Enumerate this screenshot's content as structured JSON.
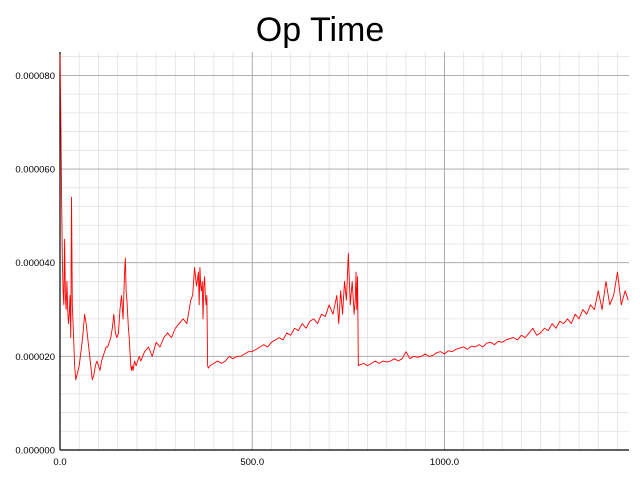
{
  "chart_data": {
    "type": "line",
    "title": "Op Time",
    "xlabel": "",
    "ylabel": "",
    "xlim": [
      0,
      1480
    ],
    "ylim": [
      0,
      8.5e-05
    ],
    "x_ticks": [
      {
        "value": 0,
        "label": "0.0"
      },
      {
        "value": 500,
        "label": "500.0"
      },
      {
        "value": 1000,
        "label": "1000.0"
      }
    ],
    "y_ticks": [
      {
        "value": 0,
        "label": "0.000000"
      },
      {
        "value": 2e-05,
        "label": "0.000020"
      },
      {
        "value": 4e-05,
        "label": "0.000040"
      },
      {
        "value": 6e-05,
        "label": "0.000060"
      },
      {
        "value": 8e-05,
        "label": "0.000080"
      }
    ],
    "x_minor_step": 50,
    "y_minor_step": 4e-06,
    "grid": true,
    "legend": "none",
    "colors": {
      "line": "#ff0000",
      "grid_major": "#a6a6a6",
      "grid_minor": "#e2e2e2",
      "axis": "#000000"
    },
    "series": [
      {
        "x": [
          0,
          2,
          4,
          6,
          8,
          10,
          12,
          14,
          16,
          18,
          20,
          22,
          24,
          26,
          28,
          30,
          32,
          35,
          38,
          41,
          44,
          47,
          50,
          53,
          56,
          60,
          64,
          68,
          72,
          76,
          80,
          84,
          88,
          92,
          96,
          100,
          104,
          108,
          112,
          116,
          120,
          124,
          128,
          132,
          136,
          140,
          144,
          148,
          152,
          156,
          160,
          164,
          168,
          170,
          172,
          174,
          176,
          178,
          180,
          182,
          184,
          186,
          188,
          190,
          194,
          198,
          202,
          206,
          210,
          220,
          230,
          240,
          250,
          260,
          270,
          280,
          290,
          300,
          310,
          320,
          330,
          340,
          345,
          350,
          355,
          360,
          362,
          364,
          366,
          368,
          370,
          372,
          374,
          376,
          378,
          380,
          382,
          384,
          386,
          390,
          400,
          410,
          420,
          430,
          440,
          450,
          460,
          470,
          480,
          490,
          500,
          510,
          520,
          530,
          540,
          550,
          560,
          570,
          580,
          590,
          600,
          610,
          620,
          630,
          640,
          650,
          660,
          670,
          680,
          690,
          700,
          710,
          720,
          725,
          730,
          735,
          740,
          745,
          750,
          755,
          760,
          765,
          768,
          770,
          772,
          774,
          776,
          780,
          790,
          800,
          810,
          820,
          830,
          840,
          850,
          860,
          870,
          880,
          890,
          900,
          910,
          920,
          930,
          940,
          950,
          960,
          970,
          980,
          990,
          1000,
          1010,
          1020,
          1030,
          1040,
          1050,
          1060,
          1070,
          1080,
          1090,
          1100,
          1110,
          1120,
          1130,
          1140,
          1150,
          1160,
          1170,
          1180,
          1190,
          1200,
          1210,
          1220,
          1230,
          1240,
          1250,
          1260,
          1270,
          1280,
          1290,
          1300,
          1310,
          1320,
          1330,
          1340,
          1350,
          1360,
          1370,
          1380,
          1390,
          1400,
          1410,
          1420,
          1430,
          1440,
          1450,
          1460,
          1470,
          1478
        ],
        "y": [
          8.45e-05,
          7.2e-05,
          5.5e-05,
          4.1e-05,
          3.4e-05,
          3.1e-05,
          4.5e-05,
          3.3e-05,
          3e-05,
          3.6e-05,
          3e-05,
          2.7e-05,
          2.9e-05,
          3.3e-05,
          2.4e-05,
          5.4e-05,
          3.1e-05,
          2.5e-05,
          1.8e-05,
          1.5e-05,
          1.6e-05,
          1.7e-05,
          1.8e-05,
          2e-05,
          2.2e-05,
          2.5e-05,
          2.9e-05,
          2.7e-05,
          2.4e-05,
          2.1e-05,
          1.8e-05,
          1.5e-05,
          1.6e-05,
          1.8e-05,
          1.9e-05,
          1.8e-05,
          1.7e-05,
          1.9e-05,
          2e-05,
          2.1e-05,
          2.2e-05,
          2.2e-05,
          2.3e-05,
          2.4e-05,
          2.6e-05,
          2.9e-05,
          2.5e-05,
          2.4e-05,
          2.5e-05,
          3e-05,
          3.3e-05,
          2.8e-05,
          3.8e-05,
          4.1e-05,
          3.4e-05,
          3.2e-05,
          2.9e-05,
          2.6e-05,
          2.4e-05,
          2.1e-05,
          1.8e-05,
          1.7e-05,
          1.8e-05,
          1.7e-05,
          1.9e-05,
          1.8e-05,
          1.9e-05,
          2e-05,
          1.9e-05,
          2.1e-05,
          2.2e-05,
          2e-05,
          2.3e-05,
          2.2e-05,
          2.4e-05,
          2.5e-05,
          2.4e-05,
          2.6e-05,
          2.7e-05,
          2.8e-05,
          2.7e-05,
          3.2e-05,
          3.3e-05,
          3.9e-05,
          3.5e-05,
          3.8e-05,
          3.1e-05,
          3.9e-05,
          3.5e-05,
          3.4e-05,
          3.6e-05,
          2.8e-05,
          3.5e-05,
          3.7e-05,
          3.3e-05,
          3.1e-05,
          3.3e-05,
          1.8e-05,
          1.75e-05,
          1.8e-05,
          1.85e-05,
          1.9e-05,
          1.85e-05,
          1.9e-05,
          2e-05,
          1.95e-05,
          2e-05,
          2e-05,
          2.05e-05,
          2.1e-05,
          2.1e-05,
          2.15e-05,
          2.2e-05,
          2.25e-05,
          2.2e-05,
          2.3e-05,
          2.35e-05,
          2.4e-05,
          2.35e-05,
          2.5e-05,
          2.45e-05,
          2.6e-05,
          2.55e-05,
          2.7e-05,
          2.6e-05,
          2.75e-05,
          2.8e-05,
          2.7e-05,
          2.9e-05,
          2.85e-05,
          3.1e-05,
          2.9e-05,
          3.3e-05,
          2.7e-05,
          3.4e-05,
          2.9e-05,
          3.6e-05,
          3.2e-05,
          4.2e-05,
          3.1e-05,
          3.6e-05,
          2.9e-05,
          3.2e-05,
          3.8e-05,
          3e-05,
          3.7e-05,
          1.8e-05,
          1.82e-05,
          1.85e-05,
          1.8e-05,
          1.85e-05,
          1.9e-05,
          1.85e-05,
          1.9e-05,
          1.88e-05,
          1.9e-05,
          1.95e-05,
          1.9e-05,
          1.95e-05,
          2.1e-05,
          1.95e-05,
          2e-05,
          1.98e-05,
          2e-05,
          2.05e-05,
          2e-05,
          2.02e-05,
          2.08e-05,
          2.1e-05,
          2.05e-05,
          2.12e-05,
          2.1e-05,
          2.15e-05,
          2.18e-05,
          2.2e-05,
          2.15e-05,
          2.22e-05,
          2.2e-05,
          2.25e-05,
          2.2e-05,
          2.28e-05,
          2.3e-05,
          2.25e-05,
          2.32e-05,
          2.3e-05,
          2.35e-05,
          2.38e-05,
          2.4e-05,
          2.35e-05,
          2.45e-05,
          2.4e-05,
          2.5e-05,
          2.6e-05,
          2.45e-05,
          2.5e-05,
          2.6e-05,
          2.55e-05,
          2.7e-05,
          2.6e-05,
          2.75e-05,
          2.7e-05,
          2.8e-05,
          2.7e-05,
          2.9e-05,
          2.8e-05,
          3e-05,
          2.9e-05,
          3.1e-05,
          3e-05,
          3.4e-05,
          3e-05,
          3.6e-05,
          3.1e-05,
          3.3e-05,
          3.8e-05,
          3.1e-05,
          3.4e-05,
          3.2e-05
        ]
      }
    ]
  }
}
